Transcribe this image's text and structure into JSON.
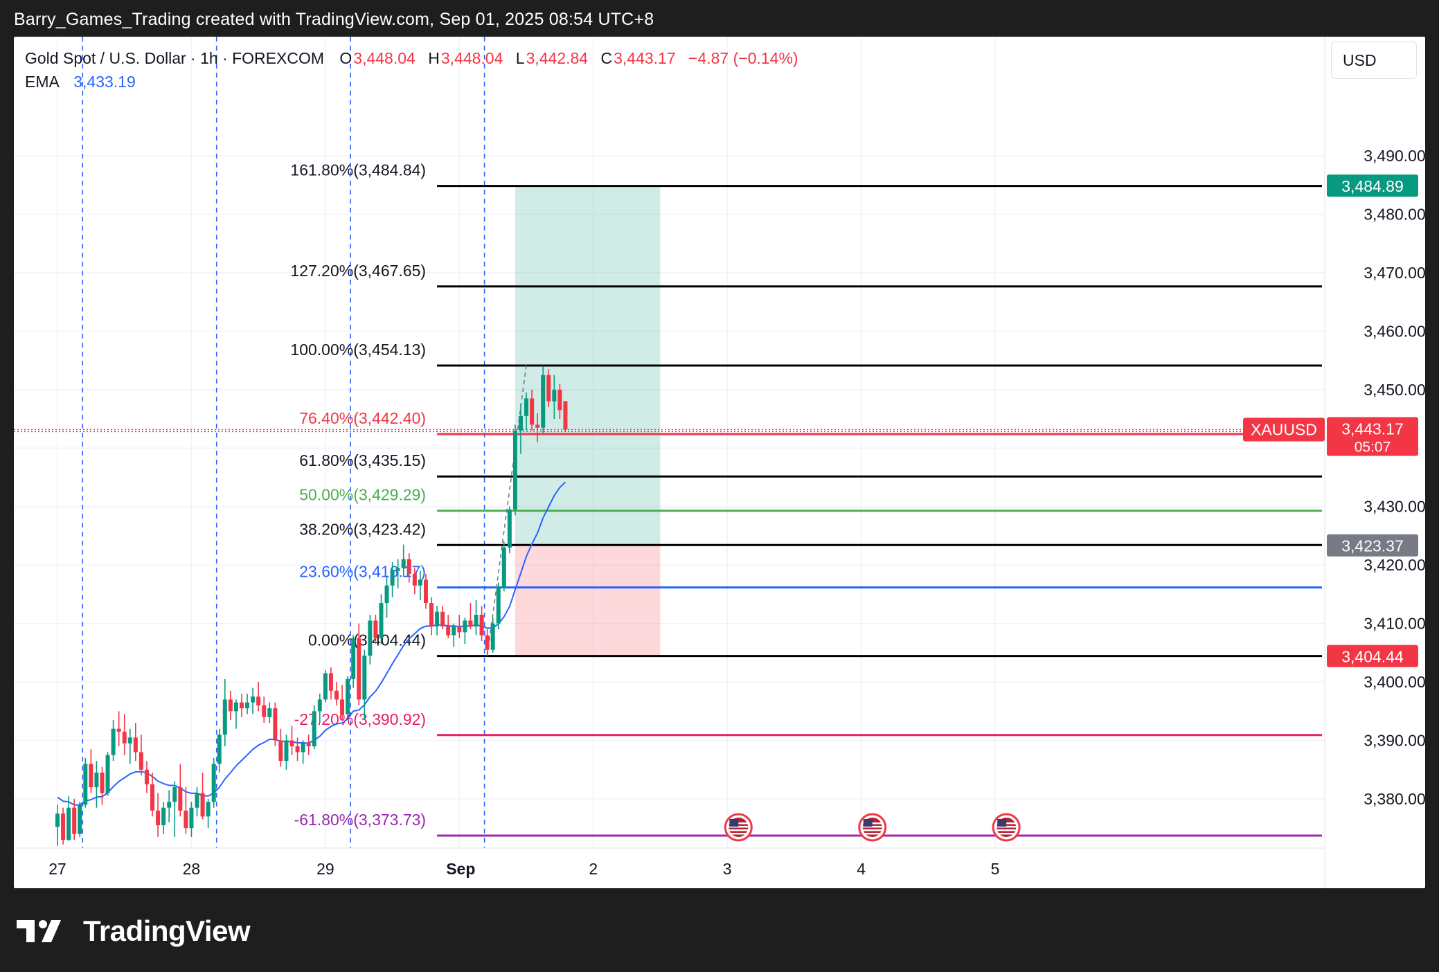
{
  "caption": "Barry_Games_Trading created with TradingView.com, Sep 01, 2025 08:54 UTC+8",
  "brand": "TradingView",
  "legend": {
    "symbol": "Gold Spot / U.S. Dollar · 1h · FOREXCOM",
    "o_label": "O",
    "o_value": "3,448.04",
    "h_label": "H",
    "h_value": "3,448.04",
    "l_label": "L",
    "l_value": "3,442.84",
    "c_label": "C",
    "c_value": "3,443.17",
    "change": "−4.87 (−0.14%)",
    "ema_label": "EMA",
    "ema_value": "3,433.19"
  },
  "currency": "USD",
  "colors": {
    "up": "#089981",
    "down": "#f23645",
    "ema": "#2962ff",
    "grid": "#f0f3fa",
    "vline": "#2962ff",
    "price_tag": "#f23645",
    "target_tag": "#089981",
    "entry_tag": "#787b86"
  },
  "chart_data": {
    "type": "candlestick",
    "symbol": "XAUUSD",
    "timeframe": "1h",
    "ylim": [
      3371.5,
      3494.5
    ],
    "y_ticks": [
      3380,
      3390,
      3400,
      3410,
      3420,
      3430,
      3440,
      3450,
      3460,
      3470,
      3480,
      3490
    ],
    "y_tick_labels": [
      "3,380.00",
      "3,390.00",
      "3,400.00",
      "3,410.00",
      "3,420.00",
      "3,430.00",
      "3,440.00",
      "3,450.00",
      "3,460.00",
      "3,470.00",
      "3,480.00",
      "3,490.00"
    ],
    "x_labels": [
      {
        "label": "27",
        "bar": 0
      },
      {
        "label": "28",
        "bar": 24
      },
      {
        "label": "29",
        "bar": 48
      },
      {
        "label": "Sep",
        "bar": 72,
        "bold": true
      },
      {
        "label": "2",
        "bar": 96
      },
      {
        "label": "3",
        "bar": 120
      },
      {
        "label": "4",
        "bar": 144
      },
      {
        "label": "5",
        "bar": 168
      }
    ],
    "session_breaks": [
      4.5,
      28.5,
      52.5,
      76.5
    ],
    "candles": [
      [
        3375.2,
        3379.0,
        3372.0,
        3377.5
      ],
      [
        3377.5,
        3378.5,
        3372.2,
        3373.0
      ],
      [
        3373.0,
        3380.5,
        3372.8,
        3378.5
      ],
      [
        3378.5,
        3380.0,
        3373.0,
        3374.0
      ],
      [
        3374.0,
        3379.5,
        3373.5,
        3379.0
      ],
      [
        3379.0,
        3387.0,
        3378.5,
        3386.0
      ],
      [
        3386.0,
        3388.5,
        3381.0,
        3382.0
      ],
      [
        3382.0,
        3386.5,
        3378.5,
        3384.5
      ],
      [
        3384.5,
        3385.5,
        3379.0,
        3381.0
      ],
      [
        3381.0,
        3388.0,
        3380.5,
        3387.5
      ],
      [
        3387.5,
        3393.5,
        3386.5,
        3392.0
      ],
      [
        3392.0,
        3395.0,
        3389.0,
        3391.5
      ],
      [
        3391.5,
        3394.5,
        3387.5,
        3389.5
      ],
      [
        3389.5,
        3392.0,
        3386.0,
        3390.5
      ],
      [
        3390.5,
        3393.0,
        3386.5,
        3388.0
      ],
      [
        3388.0,
        3391.0,
        3384.0,
        3385.0
      ],
      [
        3385.0,
        3386.5,
        3381.0,
        3382.5
      ],
      [
        3382.5,
        3384.5,
        3377.0,
        3378.0
      ],
      [
        3378.0,
        3381.0,
        3373.5,
        3375.5
      ],
      [
        3375.5,
        3379.5,
        3374.0,
        3378.5
      ],
      [
        3378.5,
        3381.5,
        3376.0,
        3379.5
      ],
      [
        3379.5,
        3383.0,
        3373.5,
        3382.0
      ],
      [
        3382.0,
        3386.0,
        3377.0,
        3378.0
      ],
      [
        3378.0,
        3382.0,
        3374.0,
        3375.0
      ],
      [
        3375.0,
        3379.5,
        3373.5,
        3378.5
      ],
      [
        3378.5,
        3382.0,
        3377.0,
        3381.0
      ],
      [
        3381.0,
        3384.5,
        3376.5,
        3377.0
      ],
      [
        3377.0,
        3380.0,
        3375.0,
        3379.5
      ],
      [
        3379.5,
        3387.0,
        3378.5,
        3386.0
      ],
      [
        3386.0,
        3392.0,
        3384.5,
        3391.0
      ],
      [
        3391.0,
        3400.5,
        3389.0,
        3397.0
      ],
      [
        3397.0,
        3398.5,
        3393.5,
        3395.0
      ],
      [
        3395.0,
        3397.0,
        3392.0,
        3396.5
      ],
      [
        3396.5,
        3398.0,
        3394.0,
        3395.5
      ],
      [
        3395.5,
        3398.0,
        3394.5,
        3396.5
      ],
      [
        3396.5,
        3399.0,
        3394.5,
        3397.5
      ],
      [
        3397.5,
        3400.0,
        3395.0,
        3396.0
      ],
      [
        3396.0,
        3397.5,
        3393.0,
        3394.0
      ],
      [
        3394.0,
        3396.5,
        3393.0,
        3395.5
      ],
      [
        3395.5,
        3396.5,
        3389.0,
        3390.0
      ],
      [
        3390.0,
        3392.0,
        3385.5,
        3386.5
      ],
      [
        3386.5,
        3391.0,
        3385.0,
        3390.0
      ],
      [
        3390.0,
        3392.5,
        3387.5,
        3389.0
      ],
      [
        3389.0,
        3390.5,
        3386.5,
        3388.0
      ],
      [
        3388.0,
        3390.0,
        3386.0,
        3389.5
      ],
      [
        3389.5,
        3391.0,
        3387.5,
        3389.0
      ],
      [
        3389.0,
        3396.0,
        3388.5,
        3395.0
      ],
      [
        3395.0,
        3398.0,
        3393.0,
        3397.0
      ],
      [
        3397.0,
        3402.0,
        3396.5,
        3401.5
      ],
      [
        3401.5,
        3402.5,
        3397.0,
        3398.5
      ],
      [
        3398.5,
        3400.0,
        3396.0,
        3397.0
      ],
      [
        3397.0,
        3399.5,
        3393.5,
        3394.5
      ],
      [
        3394.5,
        3401.0,
        3394.0,
        3400.5
      ],
      [
        3400.5,
        3408.0,
        3399.0,
        3407.5
      ],
      [
        3407.5,
        3410.0,
        3396.0,
        3397.0
      ],
      [
        3397.0,
        3405.5,
        3393.5,
        3404.5
      ],
      [
        3404.5,
        3411.5,
        3403.0,
        3410.5
      ],
      [
        3410.5,
        3411.5,
        3406.5,
        3407.5
      ],
      [
        3407.5,
        3415.0,
        3406.5,
        3413.5
      ],
      [
        3413.5,
        3418.0,
        3411.0,
        3416.5
      ],
      [
        3416.5,
        3420.5,
        3414.5,
        3419.0
      ],
      [
        3419.0,
        3421.0,
        3416.0,
        3419.5
      ],
      [
        3419.5,
        3423.5,
        3418.0,
        3421.0
      ],
      [
        3421.0,
        3422.0,
        3417.0,
        3418.5
      ],
      [
        3418.5,
        3419.5,
        3415.0,
        3416.5
      ],
      [
        3416.5,
        3419.0,
        3414.0,
        3417.5
      ],
      [
        3417.5,
        3418.5,
        3412.5,
        3413.5
      ],
      [
        3413.5,
        3414.5,
        3408.0,
        3409.5
      ],
      [
        3409.5,
        3413.0,
        3408.0,
        3412.0
      ],
      [
        3412.0,
        3413.0,
        3409.0,
        3409.5
      ],
      [
        3409.5,
        3411.5,
        3407.5,
        3408.0
      ],
      [
        3408.0,
        3410.0,
        3406.0,
        3409.5
      ],
      [
        3409.5,
        3411.5,
        3407.5,
        3408.5
      ],
      [
        3408.5,
        3411.0,
        3406.5,
        3410.5
      ],
      [
        3410.5,
        3413.5,
        3409.0,
        3409.5
      ],
      [
        3409.5,
        3414.0,
        3408.0,
        3411.5
      ],
      [
        3411.5,
        3413.0,
        3407.0,
        3408.0
      ],
      [
        3408.0,
        3409.0,
        3404.5,
        3405.5
      ],
      [
        3405.5,
        3411.0,
        3405.0,
        3410.0
      ],
      [
        3410.0,
        3417.0,
        3409.0,
        3416.0
      ],
      [
        3416.0,
        3424.0,
        3415.5,
        3423.0
      ],
      [
        3423.0,
        3430.0,
        3422.0,
        3429.5
      ],
      [
        3429.5,
        3444.0,
        3428.5,
        3443.0
      ],
      [
        3443.0,
        3447.5,
        3439.0,
        3445.5
      ],
      [
        3445.5,
        3449.5,
        3443.0,
        3448.5
      ],
      [
        3448.5,
        3450.0,
        3443.0,
        3444.0
      ],
      [
        3444.0,
        3446.0,
        3441.0,
        3443.5
      ],
      [
        3443.5,
        3454.0,
        3442.5,
        3452.5
      ],
      [
        3452.5,
        3453.5,
        3447.0,
        3448.0
      ],
      [
        3448.0,
        3452.5,
        3445.0,
        3450.0
      ],
      [
        3450.0,
        3451.0,
        3445.0,
        3446.5
      ],
      [
        3448.04,
        3448.04,
        3442.84,
        3443.17
      ]
    ],
    "ema": {
      "name": "EMA",
      "value": "3,433.19"
    },
    "fib_levels": [
      {
        "ratio": "161.80%",
        "value": 3484.84,
        "label": "161.80%(3,484.84)",
        "color": "#000000",
        "label_color": "#131722"
      },
      {
        "ratio": "127.20%",
        "value": 3467.65,
        "label": "127.20%(3,467.65)",
        "color": "#000000",
        "label_color": "#131722"
      },
      {
        "ratio": "100.00%",
        "value": 3454.13,
        "label": "100.00%(3,454.13)",
        "color": "#000000",
        "label_color": "#131722"
      },
      {
        "ratio": "76.40%",
        "value": 3442.4,
        "label": "76.40%(3,442.40)",
        "color": "#f23645",
        "label_color": "#f23645"
      },
      {
        "ratio": "61.80%",
        "value": 3435.15,
        "label": "61.80%(3,435.15)",
        "color": "#000000",
        "label_color": "#131722"
      },
      {
        "ratio": "50.00%",
        "value": 3429.29,
        "label": "50.00%(3,429.29)",
        "color": "#4caf50",
        "label_color": "#4caf50"
      },
      {
        "ratio": "38.20%",
        "value": 3423.42,
        "label": "38.20%(3,423.42)",
        "color": "#000000",
        "label_color": "#131722"
      },
      {
        "ratio": "23.60%",
        "value": 3416.17,
        "label": "23.60%(3,416.17)",
        "color": "#2962ff",
        "label_color": "#2962ff"
      },
      {
        "ratio": "0.00%",
        "value": 3404.44,
        "label": "0.00%(3,404.44)",
        "color": "#000000",
        "label_color": "#131722"
      },
      {
        "ratio": "-27.20%",
        "value": 3390.92,
        "label": "-27.20%(3,390.92)",
        "color": "#e91e63",
        "label_color": "#e91e63"
      },
      {
        "ratio": "-61.80%",
        "value": 3373.73,
        "label": "-61.80%(3,373.73)",
        "color": "#9c27b0",
        "label_color": "#9c27b0"
      }
    ],
    "position": {
      "type": "long",
      "entry": 3423.37,
      "target": 3484.89,
      "stop": 3404.44,
      "start_bar": 82,
      "end_bar": 108
    },
    "price_tags": [
      {
        "label": "3,484.89",
        "value": 3484.89,
        "kind": "target"
      },
      {
        "label": "3,443.17",
        "value": 3443.17,
        "kind": "last",
        "countdown": "05:07"
      },
      {
        "label": "3,423.37",
        "value": 3423.37,
        "kind": "entry"
      },
      {
        "label": "3,404.44",
        "value": 3404.44,
        "kind": "stop"
      }
    ],
    "symbol_tag": "XAUUSD",
    "event_bars": [
      122,
      146,
      170
    ]
  }
}
